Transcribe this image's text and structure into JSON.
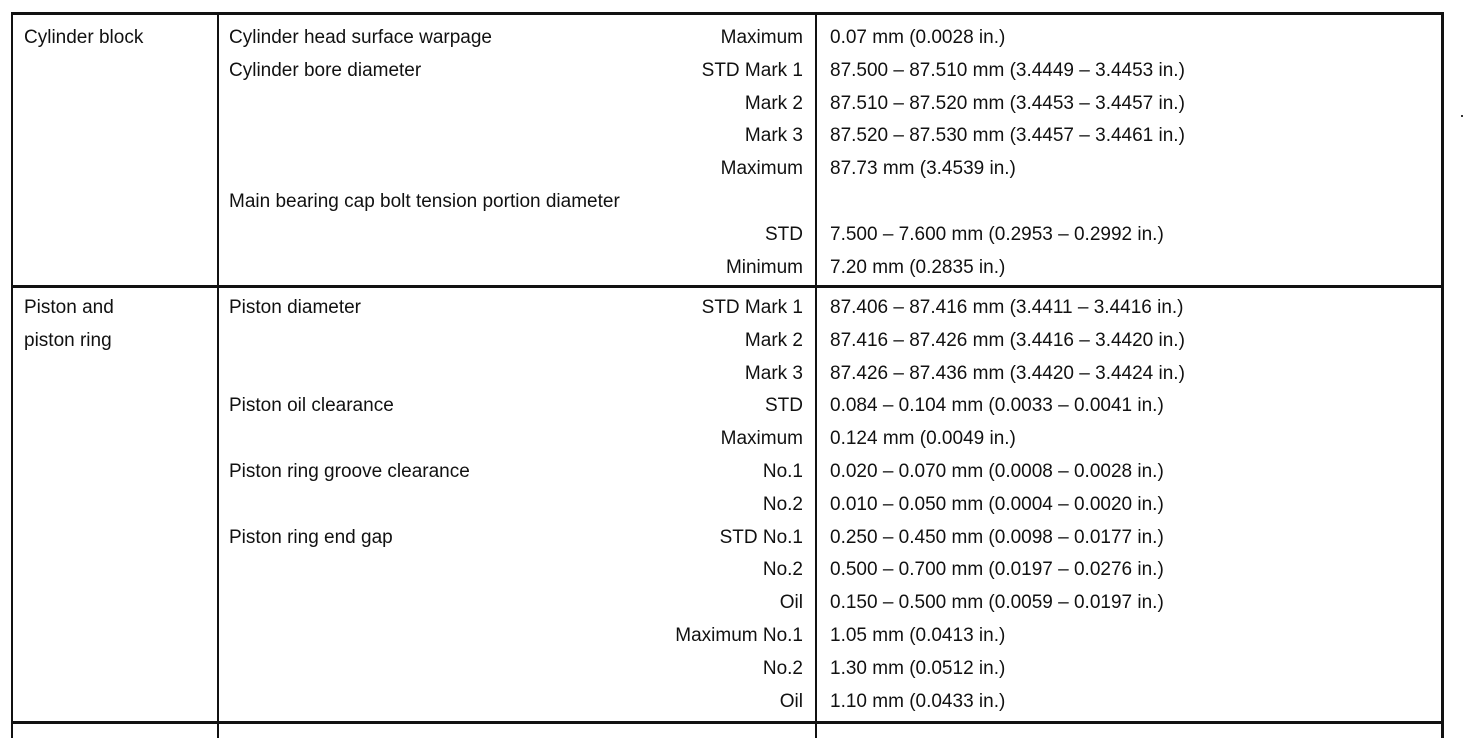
{
  "sections": [
    {
      "name_lines": [
        "Cylinder block"
      ],
      "rows": [
        {
          "item": "Cylinder head surface warpage",
          "cond": "Maximum",
          "spec": "0.07 mm (0.0028 in.)"
        },
        {
          "item": "Cylinder bore diameter",
          "cond": "STD  Mark 1",
          "spec": "87.500 – 87.510 mm (3.4449 – 3.4453 in.)"
        },
        {
          "item": "",
          "cond": "Mark 2",
          "spec": "87.510 – 87.520 mm (3.4453 – 3.4457 in.)"
        },
        {
          "item": "",
          "cond": "Mark 3",
          "spec": "87.520 – 87.530 mm (3.4457 – 3.4461 in.)"
        },
        {
          "item": "",
          "cond": "Maximum",
          "spec": "87.73 mm (3.4539 in.)"
        },
        {
          "item": "Main bearing cap bolt tension portion diameter",
          "cond": "",
          "spec": ""
        },
        {
          "item": "",
          "cond": "STD",
          "spec": "7.500 – 7.600 mm (0.2953 – 0.2992 in.)"
        },
        {
          "item": "",
          "cond": "Minimum",
          "spec": "7.20 mm (0.2835 in.)"
        }
      ]
    },
    {
      "name_lines": [
        "Piston and",
        "piston ring"
      ],
      "rows": [
        {
          "item": "Piston diameter",
          "cond": "STD  Mark 1",
          "spec": "87.406 – 87.416 mm (3.4411 – 3.4416 in.)"
        },
        {
          "item": "",
          "cond": "Mark 2",
          "spec": "87.416 – 87.426 mm (3.4416 – 3.4420 in.)"
        },
        {
          "item": "",
          "cond": "Mark 3",
          "spec": "87.426 – 87.436 mm (3.4420 – 3.4424 in.)"
        },
        {
          "item": "Piston oil clearance",
          "cond": "STD",
          "spec": "0.084 – 0.104 mm (0.0033 – 0.0041 in.)"
        },
        {
          "item": "",
          "cond": "Maximum",
          "spec": "0.124 mm (0.0049 in.)"
        },
        {
          "item": "Piston ring groove clearance",
          "cond": "No.1",
          "spec": "0.020 – 0.070 mm (0.0008 – 0.0028 in.)"
        },
        {
          "item": "",
          "cond": "No.2",
          "spec": "0.010 – 0.050 mm (0.0004 – 0.0020 in.)"
        },
        {
          "item": "Piston ring end gap",
          "cond": "STD  No.1",
          "spec": "0.250 – 0.450 mm (0.0098 – 0.0177 in.)"
        },
        {
          "item": "",
          "cond": "No.2",
          "spec": "0.500 – 0.700 mm (0.0197 – 0.0276 in.)"
        },
        {
          "item": "",
          "cond": "Oil",
          "spec": "0.150 – 0.500 mm (0.0059 – 0.0197 in.)"
        },
        {
          "item": "",
          "cond": "Maximum  No.1",
          "spec": "1.05 mm (0.0413 in.)"
        },
        {
          "item": "",
          "cond": "No.2",
          "spec": "1.30 mm (0.0512 in.)"
        },
        {
          "item": "",
          "cond": "Oil",
          "spec": "1.10 mm (0.0433 in.)"
        }
      ]
    }
  ]
}
